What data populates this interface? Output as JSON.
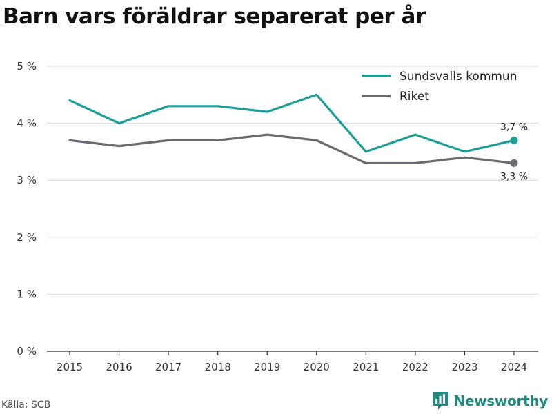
{
  "header": {
    "title": "Barn vars föräldrar separerat per år"
  },
  "footer": {
    "source": "Källa: SCB",
    "brand": "Newsworthy"
  },
  "colors": {
    "series_1": "#1a9e96",
    "series_2": "#6b6b73",
    "grid": "#d9d9d9",
    "brand": "#1f8a80"
  },
  "icons": {
    "brand_logo": "newsworthy-logo-icon"
  },
  "chart_data": {
    "type": "line",
    "title": "Barn vars föräldrar separerat per år",
    "xlabel": "",
    "ylabel": "",
    "x": [
      "2015",
      "2016",
      "2017",
      "2018",
      "2019",
      "2020",
      "2021",
      "2022",
      "2023",
      "2024"
    ],
    "y_ticks": [
      "0 %",
      "1 %",
      "2 %",
      "3 %",
      "4 %",
      "5 %"
    ],
    "ylim": [
      0,
      5
    ],
    "grid": true,
    "legend_position": "top-right",
    "series": [
      {
        "name": "Sundsvalls kommun",
        "color": "#1a9e96",
        "values": [
          4.4,
          4.0,
          4.3,
          4.3,
          4.2,
          4.5,
          3.5,
          3.8,
          3.5,
          3.7
        ],
        "end_label": "3,7 %"
      },
      {
        "name": "Riket",
        "color": "#6b6b73",
        "values": [
          3.7,
          3.6,
          3.7,
          3.7,
          3.8,
          3.7,
          3.3,
          3.3,
          3.4,
          3.3
        ],
        "end_label": "3,3 %"
      }
    ]
  }
}
